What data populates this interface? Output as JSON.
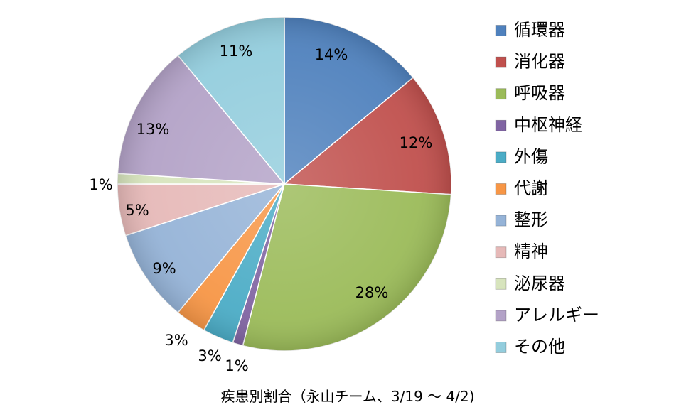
{
  "chart_data": {
    "type": "pie",
    "title": "",
    "caption": "疾患別割合（永山チーム、3/19 〜 4/2)",
    "legend_position": "right",
    "slices": [
      {
        "label": "循環器",
        "value": 14,
        "display": "14%",
        "color": "#4F81BD"
      },
      {
        "label": "消化器",
        "value": 12,
        "display": "12%",
        "color": "#C0504D"
      },
      {
        "label": "呼吸器",
        "value": 28,
        "display": "28%",
        "color": "#9BBB59"
      },
      {
        "label": "中枢神経",
        "value": 1,
        "display": "1%",
        "color": "#8064A2"
      },
      {
        "label": "外傷",
        "value": 3,
        "display": "3%",
        "color": "#4BACC6"
      },
      {
        "label": "代謝",
        "value": 3,
        "display": "3%",
        "color": "#F79646"
      },
      {
        "label": "整形",
        "value": 9,
        "display": "9%",
        "color": "#95B3D7"
      },
      {
        "label": "精神",
        "value": 5,
        "display": "5%",
        "color": "#E6B9B8"
      },
      {
        "label": "泌尿器",
        "value": 1,
        "display": "1%",
        "color": "#D7E4BD"
      },
      {
        "label": "アレルギー",
        "value": 13,
        "display": "13%",
        "color": "#B3A2C7"
      },
      {
        "label": "その他",
        "value": 11,
        "display": "11%",
        "color": "#93CDDD"
      }
    ]
  }
}
